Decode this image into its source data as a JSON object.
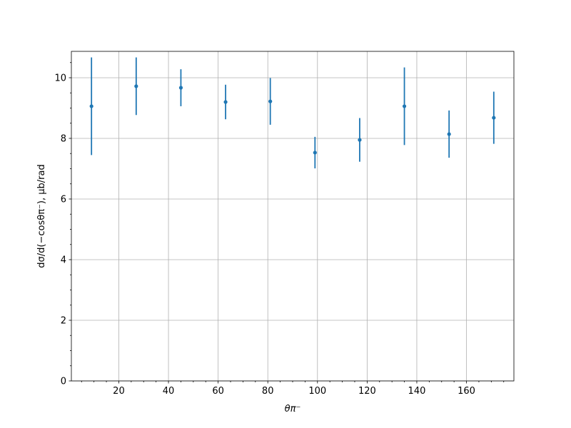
{
  "chart_data": {
    "type": "errorbar",
    "xlabel": "θπ⁻",
    "ylabel": "dσ/d(−cosθπ⁻), μb/rad",
    "x": [
      9,
      27,
      45,
      63,
      81,
      99,
      117,
      135,
      153,
      171
    ],
    "values": [
      9.06,
      9.72,
      9.67,
      9.2,
      9.22,
      7.53,
      7.95,
      9.06,
      8.14,
      8.68
    ],
    "errors": [
      1.61,
      0.95,
      0.61,
      0.57,
      0.77,
      0.52,
      0.72,
      1.28,
      0.78,
      0.86
    ],
    "color": "#1f77b4",
    "xlim": [
      0.9,
      179.1
    ],
    "ylim": [
      0,
      10.87
    ],
    "xticks": [
      20,
      40,
      60,
      80,
      100,
      120,
      140,
      160
    ],
    "yticks": [
      0,
      2,
      4,
      6,
      8,
      10
    ],
    "xminorticks": [
      5,
      10,
      15,
      25,
      30,
      35,
      45,
      50,
      55,
      65,
      70,
      75,
      85,
      90,
      95,
      105,
      110,
      115,
      125,
      130,
      135,
      145,
      150,
      155,
      165,
      170,
      175
    ],
    "yminorticks": [
      0.5,
      1,
      1.5,
      2.5,
      3,
      3.5,
      4.5,
      5,
      5.5,
      6.5,
      7,
      7.5,
      8.5,
      9,
      9.5,
      10.5
    ],
    "grid": true
  }
}
